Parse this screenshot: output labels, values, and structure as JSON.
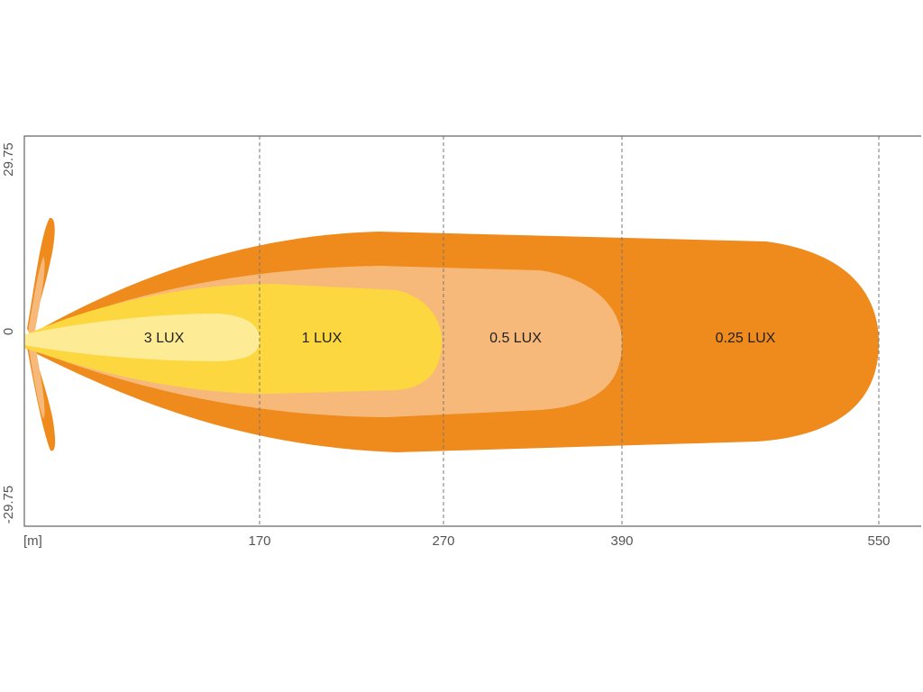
{
  "axes": {
    "y_labels": [
      "29.75",
      "0",
      "-29.75"
    ],
    "x_unit": "[m]",
    "x_labels": [
      "170",
      "270",
      "390",
      "550"
    ]
  },
  "zones": [
    {
      "label": "3 LUX"
    },
    {
      "label": "1 LUX"
    },
    {
      "label": "0.5 LUX"
    },
    {
      "label": "0.25 LUX"
    }
  ]
}
